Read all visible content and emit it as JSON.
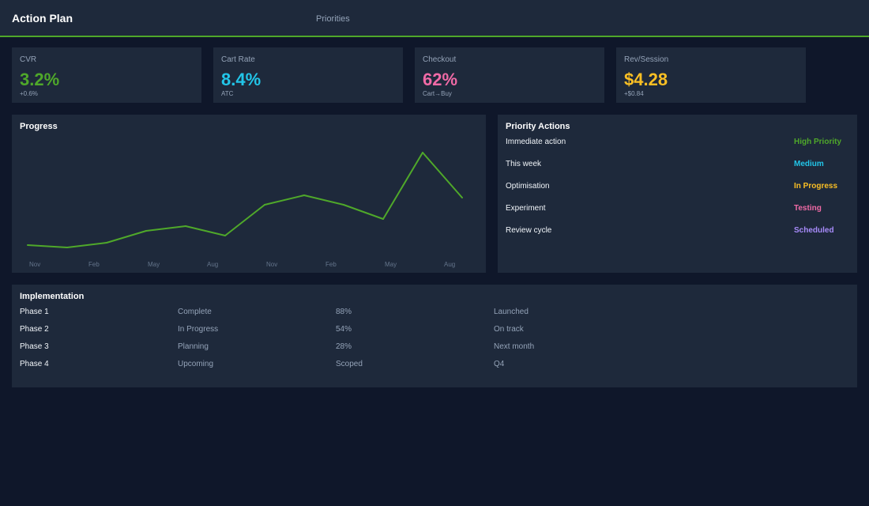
{
  "header": {
    "title": "Action Plan",
    "tab": "Priorities"
  },
  "kpis": [
    {
      "label": "CVR",
      "value": "3.2%",
      "sub": "+0.6%",
      "color": "#4fa82a"
    },
    {
      "label": "Cart Rate",
      "value": "8.4%",
      "sub": "ATC",
      "color": "#22c5e8"
    },
    {
      "label": "Checkout",
      "value": "62%",
      "sub": "Cart→Buy",
      "color": "#f06aa6"
    },
    {
      "label": "Rev/Session",
      "value": "$4.28",
      "sub": "+$0.84",
      "color": "#fbbf24"
    }
  ],
  "progress": {
    "title": "Progress",
    "chart_data": {
      "type": "line",
      "title": "Progress",
      "tick_labels": [
        "Nov",
        "Feb",
        "May",
        "Aug",
        "Nov",
        "Feb",
        "May",
        "Aug"
      ],
      "values": [
        5,
        4,
        6,
        11,
        13,
        9,
        22,
        26,
        22,
        16,
        44,
        25
      ],
      "ylim": [
        0,
        50
      ],
      "grid": false,
      "line_color": "#4fa82a"
    }
  },
  "actions": {
    "title": "Priority Actions",
    "items": [
      {
        "name": "Immediate action",
        "status": "High Priority",
        "color": "#4fa82a"
      },
      {
        "name": "This week",
        "status": "Medium",
        "color": "#22c5e8"
      },
      {
        "name": "Optimisation",
        "status": "In Progress",
        "color": "#fbbf24"
      },
      {
        "name": "Experiment",
        "status": "Testing",
        "color": "#f06aa6"
      },
      {
        "name": "Review cycle",
        "status": "Scheduled",
        "color": "#a78bfa"
      }
    ]
  },
  "implementation": {
    "title": "Implementation",
    "rows": [
      {
        "phase": "Phase 1",
        "state": "Complete",
        "pct": "88%",
        "note": "Launched"
      },
      {
        "phase": "Phase 2",
        "state": "In Progress",
        "pct": "54%",
        "note": "On track"
      },
      {
        "phase": "Phase 3",
        "state": "Planning",
        "pct": "28%",
        "note": "Next month"
      },
      {
        "phase": "Phase 4",
        "state": "Upcoming",
        "pct": "Scoped",
        "note": "Q4"
      }
    ]
  }
}
